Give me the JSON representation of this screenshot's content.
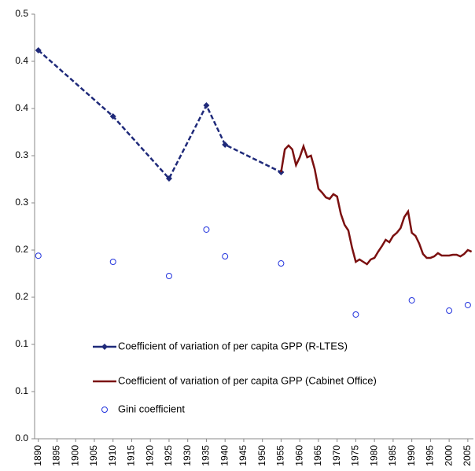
{
  "chart_data": {
    "type": "line",
    "xlim": [
      1889,
      2006.5
    ],
    "xticks": [
      1890,
      1895,
      1900,
      1905,
      1910,
      1915,
      1920,
      1925,
      1930,
      1935,
      1940,
      1945,
      1950,
      1955,
      1960,
      1965,
      1970,
      1975,
      1980,
      1985,
      1990,
      1995,
      2000,
      2005
    ],
    "ylim": [
      0,
      0.45
    ],
    "yticks": [
      {
        "value": 0,
        "label": "0.0"
      },
      {
        "value": 0.05,
        "label": "0.1"
      },
      {
        "value": 0.1,
        "label": "0.1"
      },
      {
        "value": 0.15,
        "label": "0.2"
      },
      {
        "value": 0.2,
        "label": "0.2"
      },
      {
        "value": 0.25,
        "label": "0.3"
      },
      {
        "value": 0.3,
        "label": "0.3"
      },
      {
        "value": 0.35,
        "label": "0.4"
      },
      {
        "value": 0.4,
        "label": "0.4"
      },
      {
        "value": 0.45,
        "label": "0.5"
      }
    ],
    "grid": false,
    "legend": "bottom-left",
    "series": [
      {
        "name": "Coefficient of variation of per capita GPP (R-LTES)",
        "color": "#1f2a7a",
        "style": "dashed",
        "marker": "diamond",
        "x": [
          1890,
          1910,
          1925,
          1935,
          1940,
          1955
        ],
        "values": [
          0.4117,
          0.3417,
          0.2758,
          0.3533,
          0.3117,
          0.2825
        ]
      },
      {
        "name": "Coefficient of variation of per capita GPP (Cabinet Office)",
        "color": "#7b1010",
        "style": "solid",
        "marker": "none",
        "x": [
          1955,
          1956,
          1957,
          1958,
          1959,
          1960,
          1961,
          1962,
          1963,
          1964,
          1965,
          1966,
          1967,
          1968,
          1969,
          1970,
          1971,
          1972,
          1973,
          1974,
          1975,
          1976,
          1977,
          1978,
          1979,
          1980,
          1981,
          1982,
          1983,
          1984,
          1985,
          1986,
          1987,
          1988,
          1989,
          1990,
          1991,
          1992,
          1993,
          1994,
          1995,
          1996,
          1997,
          1998,
          1999,
          2000,
          2001,
          2002,
          2003,
          2004,
          2005,
          2006
        ],
        "values": [
          0.2825,
          0.3067,
          0.3108,
          0.3067,
          0.29,
          0.2983,
          0.31,
          0.2983,
          0.3,
          0.2858,
          0.265,
          0.2608,
          0.2558,
          0.2542,
          0.2592,
          0.2567,
          0.2383,
          0.2267,
          0.2208,
          0.2025,
          0.1875,
          0.19,
          0.1875,
          0.185,
          0.19,
          0.1917,
          0.1983,
          0.2042,
          0.2108,
          0.2083,
          0.215,
          0.2183,
          0.2233,
          0.235,
          0.2408,
          0.2183,
          0.215,
          0.2067,
          0.1958,
          0.1917,
          0.1917,
          0.1933,
          0.1967,
          0.1942,
          0.1942,
          0.1942,
          0.195,
          0.195,
          0.1933,
          0.1958,
          0.2,
          0.1983
        ]
      },
      {
        "name": "Gini coefficient",
        "color": "#2233dd",
        "style": "none",
        "marker": "circle",
        "x": [
          1890,
          1910,
          1925,
          1935,
          1940,
          1955,
          1975,
          1990,
          2000,
          2005
        ],
        "values": [
          0.194,
          0.1875,
          0.1725,
          0.2217,
          0.1933,
          0.1858,
          0.1317,
          0.1467,
          0.1358,
          0.1417
        ]
      }
    ]
  }
}
